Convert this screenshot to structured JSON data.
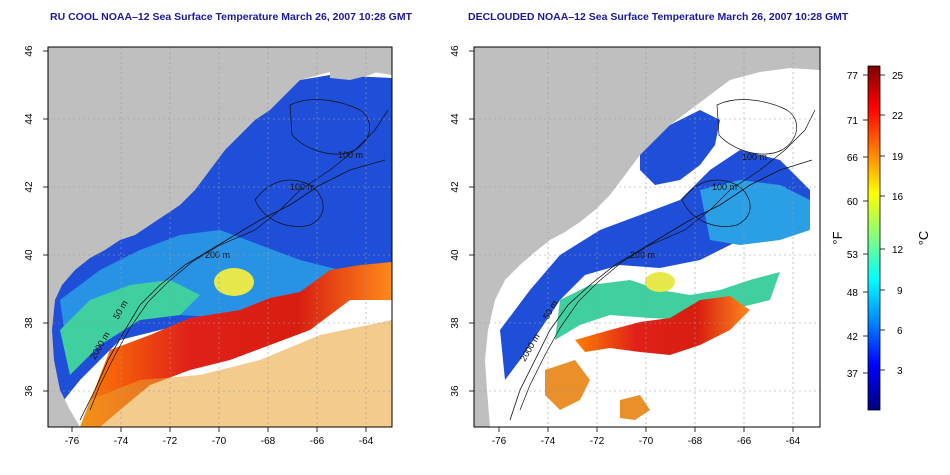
{
  "panels": [
    {
      "title": "RU COOL NOAA–12 Sea Surface Temperature March 26, 2007 10:28 GMT",
      "x_ticks": [
        "-76",
        "-74",
        "-72",
        "-70",
        "-68",
        "-66",
        "-64"
      ],
      "y_ticks": [
        "36",
        "38",
        "40",
        "42",
        "44",
        "46"
      ],
      "contour_labels": [
        "100 m",
        "100 m",
        "200 m",
        "50 m",
        "2000 m"
      ]
    },
    {
      "title": "DECLOUDED NOAA–12 Sea Surface Temperature March 26, 2007 10:28 GMT",
      "x_ticks": [
        "-76",
        "-74",
        "-72",
        "-70",
        "-68",
        "-66",
        "-64"
      ],
      "y_ticks": [
        "36",
        "38",
        "40",
        "42",
        "44",
        "46"
      ],
      "contour_labels": [
        "100 m",
        "100 m",
        "200 m",
        "50 m",
        "2000 m"
      ]
    }
  ],
  "colorbar": {
    "fahrenheit_ticks": [
      "77",
      "71",
      "66",
      "60",
      "53",
      "48",
      "42",
      "37"
    ],
    "celsius_ticks": [
      "25",
      "22",
      "19",
      "16",
      "12",
      "9",
      "6",
      "3"
    ],
    "fahrenheit_label": "°F",
    "celsius_label": "°C",
    "colors": [
      "#00007f",
      "#0000ff",
      "#0080ff",
      "#00ffff",
      "#80ff80",
      "#ffff00",
      "#ff8000",
      "#ff0000",
      "#7f0000"
    ]
  }
}
